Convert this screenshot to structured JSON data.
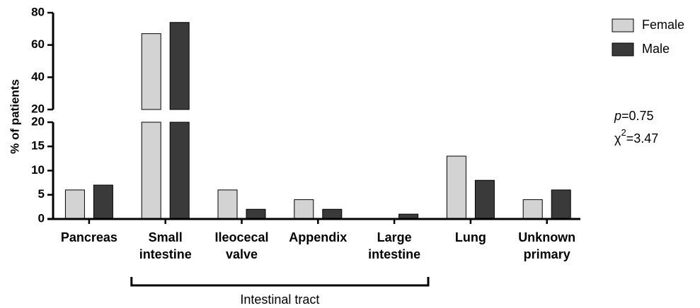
{
  "chart_data": {
    "type": "broken_bar",
    "y_label": "% of patients",
    "categories": [
      [
        "Pancreas"
      ],
      [
        "Small",
        "intestine"
      ],
      [
        "Ileocecal",
        "valve"
      ],
      [
        "Appendix"
      ],
      [
        "Large",
        "intestine"
      ],
      [
        "Lung"
      ],
      [
        "Unknown",
        "primary"
      ]
    ],
    "series": [
      {
        "name": "Female",
        "color": "#d3d3d3",
        "values": [
          6,
          67,
          6,
          4,
          0,
          13,
          4
        ]
      },
      {
        "name": "Male",
        "color": "#3a3a3a",
        "values": [
          7,
          74,
          2,
          2,
          1,
          8,
          6
        ]
      }
    ],
    "ylim_lower": [
      0,
      20
    ],
    "yticks_lower": [
      0,
      5,
      10,
      15,
      20
    ],
    "ylim_upper": [
      20,
      80
    ],
    "yticks_upper": [
      20,
      40,
      60,
      80
    ],
    "stats": [
      [
        "p",
        "=0.75"
      ],
      [
        "χ",
        "2",
        "=3.47"
      ]
    ],
    "group": {
      "label": "Intestinal tract",
      "start_category": 1,
      "end_category": 4
    }
  }
}
